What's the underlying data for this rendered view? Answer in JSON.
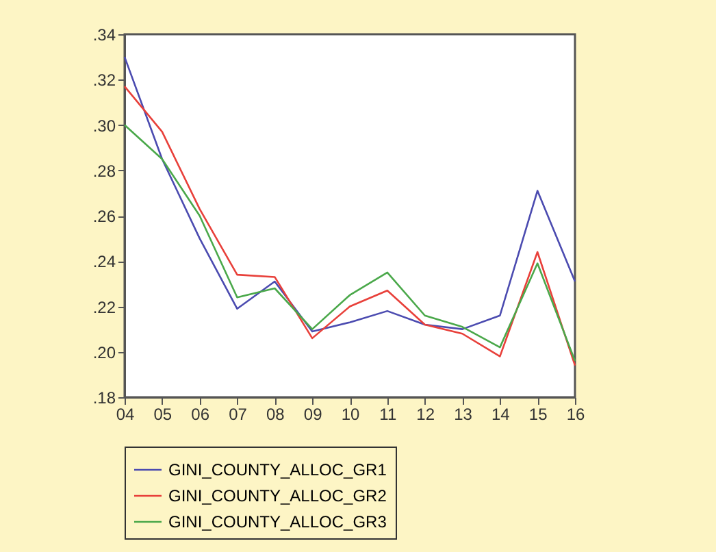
{
  "chart_data": {
    "type": "line",
    "categories": [
      "04",
      "05",
      "06",
      "07",
      "08",
      "09",
      "10",
      "11",
      "12",
      "13",
      "14",
      "15",
      "16"
    ],
    "series": [
      {
        "name": "GINI_COUNTY_ALLOC_GR1",
        "color": "#4b4bb0",
        "values": [
          0.33,
          0.285,
          0.25,
          0.219,
          0.231,
          0.209,
          0.213,
          0.218,
          0.212,
          0.21,
          0.216,
          0.271,
          0.231
        ]
      },
      {
        "name": "GINI_COUNTY_ALLOC_GR2",
        "color": "#e8403a",
        "values": [
          0.317,
          0.297,
          0.263,
          0.234,
          0.233,
          0.206,
          0.22,
          0.227,
          0.212,
          0.208,
          0.198,
          0.244,
          0.194
        ]
      },
      {
        "name": "GINI_COUNTY_ALLOC_GR3",
        "color": "#4aa84a",
        "values": [
          0.3,
          0.285,
          0.26,
          0.224,
          0.228,
          0.21,
          0.225,
          0.235,
          0.216,
          0.211,
          0.202,
          0.239,
          0.196
        ]
      }
    ],
    "ylim": [
      0.18,
      0.34
    ],
    "yticks": [
      {
        "value": 0.18,
        "label": ".18"
      },
      {
        "value": 0.2,
        "label": ".20"
      },
      {
        "value": 0.22,
        "label": ".22"
      },
      {
        "value": 0.24,
        "label": ".24"
      },
      {
        "value": 0.26,
        "label": ".26"
      },
      {
        "value": 0.28,
        "label": ".28"
      },
      {
        "value": 0.3,
        "label": ".30"
      },
      {
        "value": 0.32,
        "label": ".32"
      },
      {
        "value": 0.34,
        "label": ".34"
      }
    ],
    "grid": false,
    "legend": "bottom",
    "line_style": "solid"
  }
}
